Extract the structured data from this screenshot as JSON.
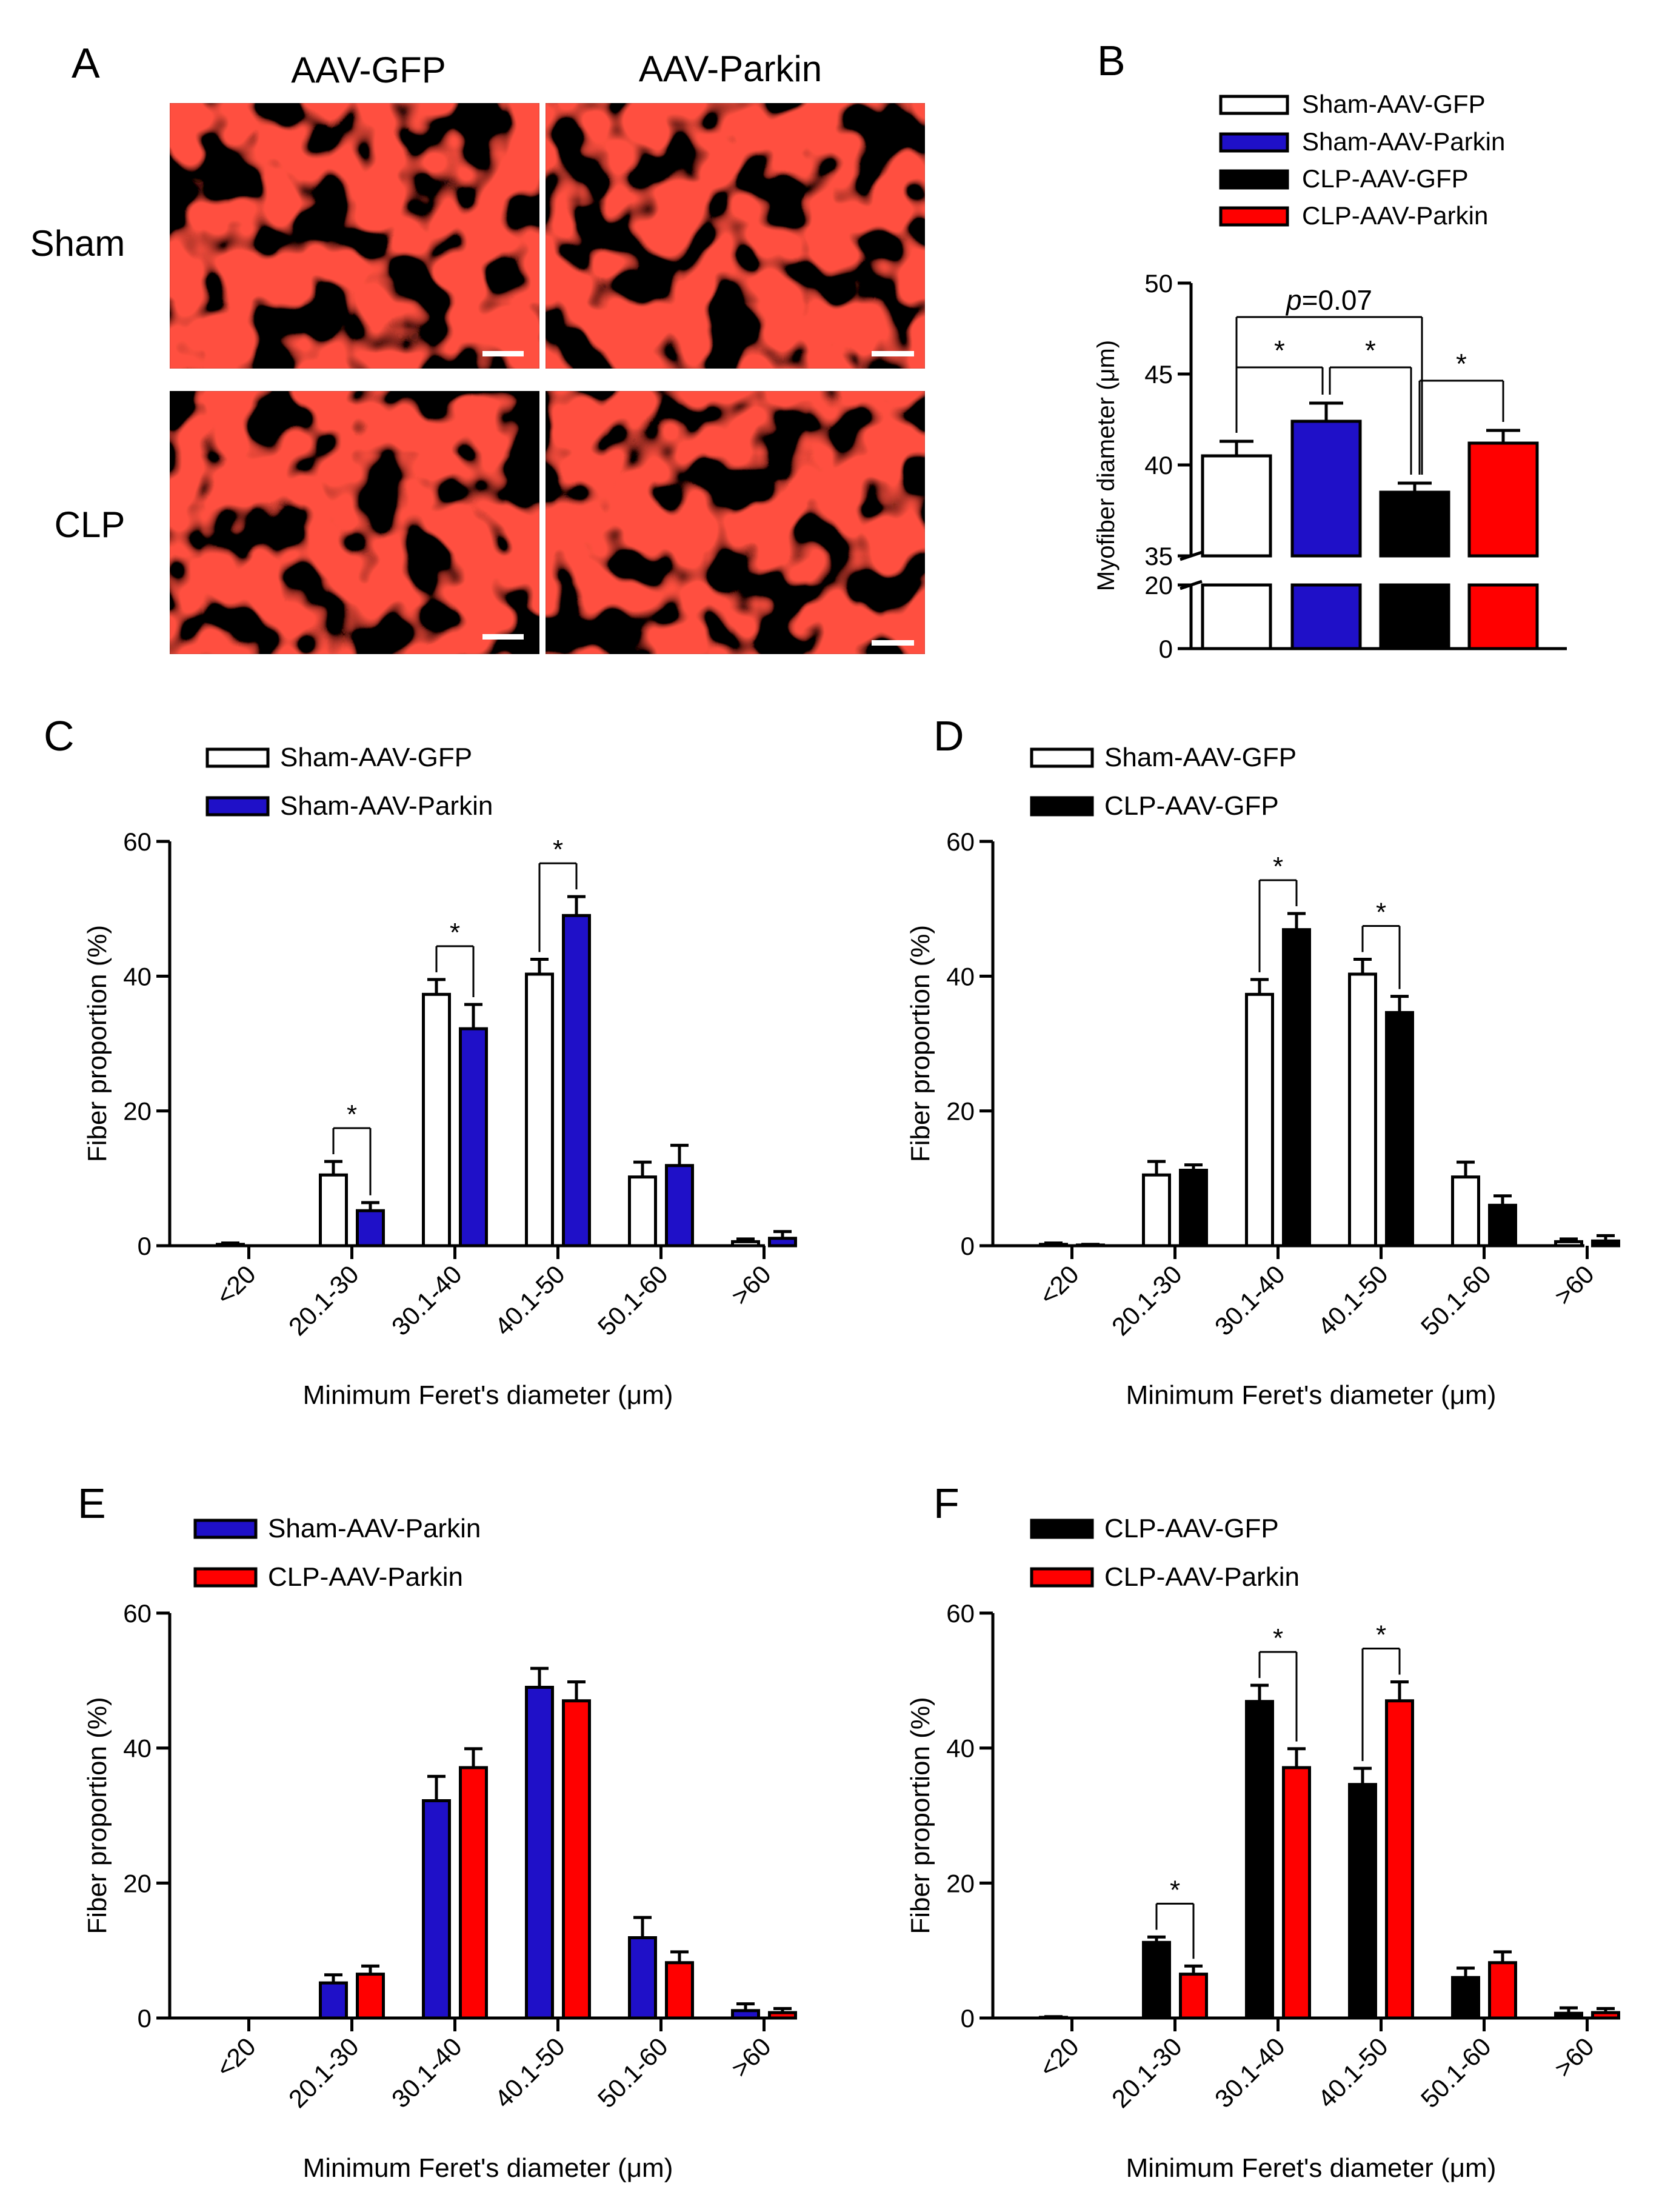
{
  "figure": {
    "panel_a": {
      "letter": "A",
      "col_labels": [
        "AAV-GFP",
        "AAV-Parkin"
      ],
      "row_labels": [
        "Sham",
        "CLP"
      ]
    }
  },
  "legend_entries": {
    "sham_gfp": "Sham-AAV-GFP",
    "sham_parkin": "Sham-AAV-Parkin",
    "clp_gfp": "CLP-AAV-GFP",
    "clp_parkin": "CLP-AAV-Parkin"
  },
  "colors": {
    "sham_gfp": "#ffffff",
    "sham_parkin": "#1f10c8",
    "clp_gfp": "#000000",
    "clp_parkin": "#ff0000",
    "outline": "#000000"
  },
  "chart_data": [
    {
      "panel": "B",
      "type": "bar",
      "ylabel": "Myofiber diameter (μm)",
      "categories": [
        "Sham-AAV-GFP",
        "Sham-AAV-Parkin",
        "CLP-AAV-GFP",
        "CLP-AAV-Parkin"
      ],
      "colorKeys": [
        "sham_gfp",
        "sham_parkin",
        "clp_gfp",
        "clp_parkin"
      ],
      "values": [
        40.5,
        42.4,
        38.5,
        41.2
      ],
      "errors": [
        0.8,
        1.0,
        0.5,
        0.7
      ],
      "y_axis_broken": true,
      "upper_segment_range": [
        35,
        50
      ],
      "lower_segment_range": [
        0,
        20
      ],
      "ticks_upper": [
        "35",
        "40",
        "45",
        "50"
      ],
      "ticks_lower": [
        "0",
        "20"
      ],
      "annotations": [
        {
          "from": 0,
          "to": 1,
          "text": "*"
        },
        {
          "from": 1,
          "to": 2,
          "text": "*"
        },
        {
          "from": 2,
          "to": 3,
          "text": "*"
        },
        {
          "from": 0,
          "to": 2,
          "text_italic": "p",
          "text": "=0.07"
        }
      ]
    },
    {
      "panel": "C",
      "type": "bar",
      "xlabel": "Minimum Feret's diameter (μm)",
      "ylabel": "Fiber proportion (%)",
      "ylim": [
        0,
        60
      ],
      "yticks": [
        "0",
        "20",
        "40",
        "60"
      ],
      "categories": [
        "<20",
        "20.1-30",
        "30.1-40",
        "40.1-50",
        "50.1-60",
        ">60"
      ],
      "series": [
        {
          "name": "Sham-AAV-GFP",
          "colorKey": "sham_gfp",
          "values": [
            0.2,
            10.5,
            37.3,
            40.3,
            10.2,
            0.6
          ],
          "errors": [
            0.2,
            2.0,
            2.2,
            2.2,
            2.2,
            0.4
          ]
        },
        {
          "name": "Sham-AAV-Parkin",
          "colorKey": "sham_parkin",
          "values": [
            0,
            5.2,
            32.2,
            49.0,
            11.9,
            1.1
          ],
          "errors": [
            0,
            1.2,
            3.6,
            2.8,
            3.0,
            1.0
          ]
        }
      ],
      "annotations": [
        {
          "category": 1,
          "text": "*"
        },
        {
          "category": 2,
          "text": "*"
        },
        {
          "category": 3,
          "text": "*"
        }
      ]
    },
    {
      "panel": "D",
      "type": "bar",
      "xlabel": "Minimum Feret's diameter (μm)",
      "ylabel": "Fiber proportion (%)",
      "ylim": [
        0,
        60
      ],
      "yticks": [
        "0",
        "20",
        "40",
        "60"
      ],
      "categories": [
        "<20",
        "20.1-30",
        "30.1-40",
        "40.1-50",
        "50.1-60",
        ">60"
      ],
      "series": [
        {
          "name": "Sham-AAV-GFP",
          "colorKey": "sham_gfp",
          "values": [
            0.2,
            10.5,
            37.3,
            40.3,
            10.2,
            0.6
          ],
          "errors": [
            0.2,
            2.0,
            2.2,
            2.2,
            2.2,
            0.4
          ]
        },
        {
          "name": "CLP-AAV-GFP",
          "colorKey": "clp_gfp",
          "values": [
            0.1,
            11.2,
            46.9,
            34.6,
            6.0,
            0.7
          ],
          "errors": [
            0.1,
            0.8,
            2.4,
            2.4,
            1.4,
            0.8
          ]
        }
      ],
      "annotations": [
        {
          "category": 2,
          "text": "*"
        },
        {
          "category": 3,
          "text": "*"
        }
      ]
    },
    {
      "panel": "E",
      "type": "bar",
      "xlabel": "Minimum Feret's diameter (μm)",
      "ylabel": "Fiber proportion (%)",
      "ylim": [
        0,
        60
      ],
      "yticks": [
        "0",
        "20",
        "40",
        "60"
      ],
      "categories": [
        "<20",
        "20.1-30",
        "30.1-40",
        "40.1-50",
        "50.1-60",
        ">60"
      ],
      "series": [
        {
          "name": "Sham-AAV-Parkin",
          "colorKey": "sham_parkin",
          "values": [
            0,
            5.2,
            32.2,
            49.0,
            11.9,
            1.1
          ],
          "errors": [
            0,
            1.2,
            3.6,
            2.8,
            3.0,
            1.0
          ]
        },
        {
          "name": "CLP-AAV-Parkin",
          "colorKey": "clp_parkin",
          "values": [
            0,
            6.5,
            37.1,
            47.0,
            8.2,
            0.8
          ],
          "errors": [
            0,
            1.2,
            2.8,
            2.8,
            1.6,
            0.6
          ]
        }
      ],
      "annotations": []
    },
    {
      "panel": "F",
      "type": "bar",
      "xlabel": "Minimum Feret's diameter (μm)",
      "ylabel": "Fiber proportion (%)",
      "ylim": [
        0,
        60
      ],
      "yticks": [
        "0",
        "20",
        "40",
        "60"
      ],
      "categories": [
        "<20",
        "20.1-30",
        "30.1-40",
        "40.1-50",
        "50.1-60",
        ">60"
      ],
      "series": [
        {
          "name": "CLP-AAV-GFP",
          "colorKey": "clp_gfp",
          "values": [
            0.1,
            11.2,
            46.9,
            34.6,
            6.0,
            0.7
          ],
          "errors": [
            0.1,
            0.8,
            2.4,
            2.4,
            1.4,
            0.8
          ]
        },
        {
          "name": "CLP-AAV-Parkin",
          "colorKey": "clp_parkin",
          "values": [
            0,
            6.5,
            37.1,
            47.0,
            8.2,
            0.8
          ],
          "errors": [
            0,
            1.2,
            2.8,
            2.8,
            1.6,
            0.6
          ]
        }
      ],
      "annotations": [
        {
          "category": 1,
          "text": "*"
        },
        {
          "category": 2,
          "text": "*"
        },
        {
          "category": 3,
          "text": "*"
        }
      ]
    }
  ]
}
